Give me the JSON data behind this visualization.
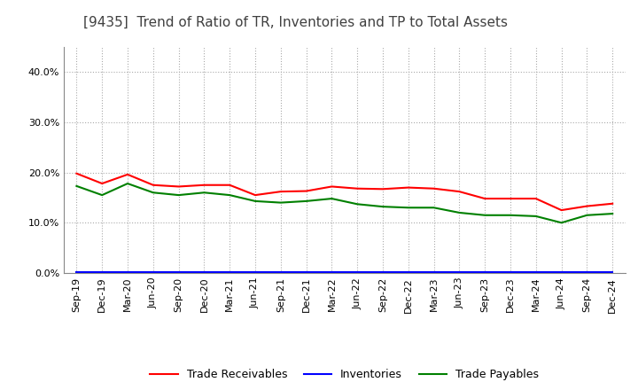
{
  "title": "[9435]  Trend of Ratio of TR, Inventories and TP to Total Assets",
  "x_labels": [
    "Sep-19",
    "Dec-19",
    "Mar-20",
    "Jun-20",
    "Sep-20",
    "Dec-20",
    "Mar-21",
    "Jun-21",
    "Sep-21",
    "Dec-21",
    "Mar-22",
    "Jun-22",
    "Sep-22",
    "Dec-22",
    "Mar-23",
    "Jun-23",
    "Sep-23",
    "Dec-23",
    "Mar-24",
    "Jun-24",
    "Sep-24",
    "Dec-24"
  ],
  "trade_receivables": [
    0.198,
    0.178,
    0.196,
    0.175,
    0.172,
    0.175,
    0.175,
    0.155,
    0.162,
    0.163,
    0.172,
    0.168,
    0.167,
    0.17,
    0.168,
    0.162,
    0.148,
    0.148,
    0.148,
    0.125,
    0.133,
    0.138
  ],
  "inventories": [
    0.002,
    0.002,
    0.002,
    0.002,
    0.002,
    0.002,
    0.002,
    0.002,
    0.002,
    0.002,
    0.002,
    0.002,
    0.002,
    0.002,
    0.002,
    0.002,
    0.002,
    0.002,
    0.002,
    0.002,
    0.002,
    0.002
  ],
  "trade_payables": [
    0.173,
    0.155,
    0.178,
    0.16,
    0.155,
    0.16,
    0.155,
    0.143,
    0.14,
    0.143,
    0.148,
    0.137,
    0.132,
    0.13,
    0.13,
    0.12,
    0.115,
    0.115,
    0.113,
    0.1,
    0.115,
    0.118
  ],
  "ylim": [
    0.0,
    0.45
  ],
  "yticks": [
    0.0,
    0.1,
    0.2,
    0.3,
    0.4
  ],
  "tr_color": "#ff0000",
  "inv_color": "#0000ff",
  "tp_color": "#008000",
  "bg_color": "#ffffff",
  "plot_bg_color": "#ffffff",
  "legend_labels": [
    "Trade Receivables",
    "Inventories",
    "Trade Payables"
  ],
  "title_fontsize": 11,
  "tick_fontsize": 8,
  "legend_fontsize": 9,
  "title_color": "#404040"
}
